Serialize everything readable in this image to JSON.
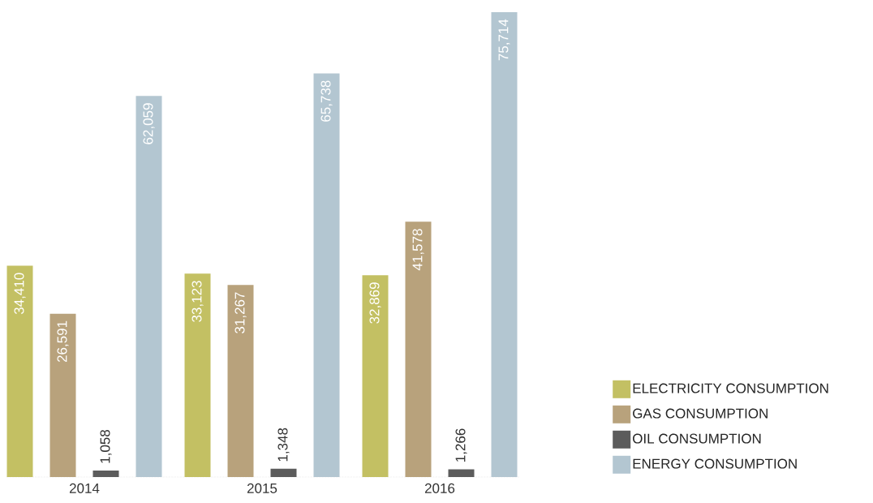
{
  "chart_data": {
    "type": "bar",
    "categories": [
      "2014",
      "2015",
      "2016"
    ],
    "series": [
      {
        "name": "ELECTRICITY CONSUMPTION",
        "color": "#c3c063",
        "values": [
          34410,
          33123,
          32869
        ],
        "value_labels": [
          "34,410",
          "33,123",
          "32,869"
        ]
      },
      {
        "name": "GAS CONSUMPTION",
        "color": "#b8a27c",
        "values": [
          26591,
          31267,
          41578
        ],
        "value_labels": [
          "26,591",
          "31,267",
          "41,578"
        ]
      },
      {
        "name": "OIL CONSUMPTION",
        "color": "#5c5c5c",
        "values": [
          1058,
          1348,
          1266
        ],
        "value_labels": [
          "1,058",
          "1,348",
          "1,266"
        ]
      },
      {
        "name": "ENERGY CONSUMPTION",
        "color": "#b3c6d1",
        "values": [
          62059,
          65738,
          75714
        ],
        "value_labels": [
          "62,059",
          "65,738",
          "75,714"
        ]
      }
    ],
    "legend": "right"
  }
}
